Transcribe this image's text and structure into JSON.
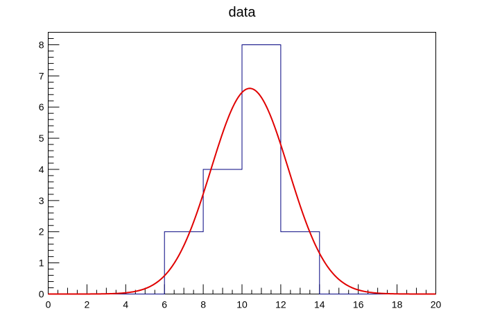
{
  "chart_data": {
    "type": "histogram",
    "title": "data",
    "xlabel": "",
    "ylabel": "",
    "xlim": [
      0,
      20
    ],
    "ylim": [
      0,
      8.4
    ],
    "x_ticks": [
      "0",
      "2",
      "4",
      "6",
      "8",
      "10",
      "12",
      "14",
      "16",
      "18",
      "20"
    ],
    "y_ticks": [
      "0",
      "1",
      "2",
      "3",
      "4",
      "5",
      "6",
      "7",
      "8"
    ],
    "bins": [
      {
        "x0": 0,
        "x1": 2,
        "count": 0
      },
      {
        "x0": 2,
        "x1": 4,
        "count": 0
      },
      {
        "x0": 4,
        "x1": 6,
        "count": 0
      },
      {
        "x0": 6,
        "x1": 8,
        "count": 2
      },
      {
        "x0": 8,
        "x1": 10,
        "count": 4
      },
      {
        "x0": 10,
        "x1": 12,
        "count": 8
      },
      {
        "x0": 12,
        "x1": 14,
        "count": 2
      },
      {
        "x0": 14,
        "x1": 16,
        "count": 0
      },
      {
        "x0": 16,
        "x1": 18,
        "count": 0
      },
      {
        "x0": 18,
        "x1": 20,
        "count": 0
      }
    ],
    "fit": {
      "function": "gaussian",
      "amplitude": 6.6,
      "mean": 10.4,
      "sigma": 2.0
    },
    "colors": {
      "histogram": "#00007f",
      "fit": "#e00000",
      "frame": "#000000"
    },
    "grid": false,
    "legend": "none"
  }
}
